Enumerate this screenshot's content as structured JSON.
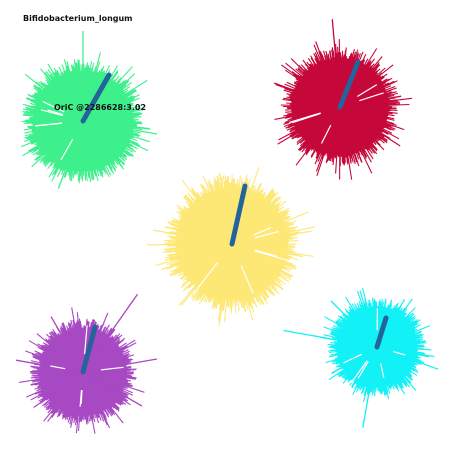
{
  "title": "Bifidobacterium_longum",
  "annotation": "OriC @2286628:3.02",
  "colors": {
    "needle": "#23649c",
    "background": "#ffffff"
  },
  "plots": [
    {
      "id": "green",
      "color": "#3ef08c"
    },
    {
      "id": "red",
      "color": "#c5073a"
    },
    {
      "id": "yellow",
      "color": "#fde876"
    },
    {
      "id": "cyan",
      "color": "#12f1f5"
    },
    {
      "id": "purple",
      "color": "#a749c2"
    }
  ]
}
